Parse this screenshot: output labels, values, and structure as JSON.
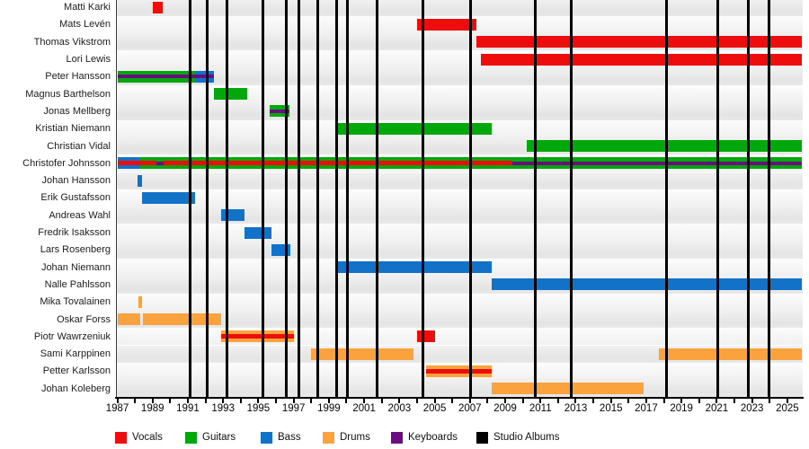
{
  "chart_data": {
    "type": "bar",
    "subtype": "band-members-timeline-gantt",
    "title": "",
    "x_axis": {
      "min": 1987,
      "max": 2025.84,
      "minor_tick_step": 1,
      "label_step": 2,
      "label_years": [
        1987,
        1989,
        1991,
        1993,
        1995,
        1997,
        1999,
        2001,
        2003,
        2005,
        2007,
        2009,
        2011,
        2013,
        2015,
        2017,
        2019,
        2021,
        2023,
        2025
      ]
    },
    "grid": "row-stripes-alternating",
    "legend_position": "bottom",
    "legend": [
      {
        "label": "Vocals",
        "role": "vocals"
      },
      {
        "label": "Guitars",
        "role": "guitars"
      },
      {
        "label": "Bass",
        "role": "bass"
      },
      {
        "label": "Drums",
        "role": "drums"
      },
      {
        "label": "Keyboards",
        "role": "keyboards"
      },
      {
        "label": "Studio Albums",
        "role": "albums"
      }
    ],
    "colors": {
      "vocals": "#ee0d0d",
      "guitars": "#00a80b",
      "bass": "#1272c8",
      "drums": "#faa33e",
      "keyboards": "#690d80",
      "albums": "#000000"
    },
    "album_lines_years": [
      1991.12,
      1992.1,
      1993.2,
      1995.27,
      1996.6,
      1997.3,
      1998.35,
      1999.45,
      2000.05,
      2001.75,
      2004.35,
      2007.05,
      2010.7,
      2012.75,
      2018.15,
      2021.05,
      2022.8,
      2023.95
    ],
    "members": [
      {
        "name": "Matti Karki",
        "bars": [
          {
            "role": "vocals",
            "layer": "full",
            "start": 1989.0,
            "end": 1989.6
          }
        ]
      },
      {
        "name": "Mats Levén",
        "bars": [
          {
            "role": "vocals",
            "layer": "full",
            "start": 2004.0,
            "end": 2007.35
          }
        ]
      },
      {
        "name": "Thomas Vikstrom",
        "bars": [
          {
            "role": "vocals",
            "layer": "full",
            "start": 2007.35,
            "end": 2025.84
          }
        ]
      },
      {
        "name": "Lori Lewis",
        "bars": [
          {
            "role": "vocals",
            "layer": "full",
            "start": 2007.62,
            "end": 2025.84
          }
        ]
      },
      {
        "name": "Peter Hansson",
        "bars": [
          {
            "role": "guitars",
            "layer": "full",
            "start": 1987.0,
            "end": 1991.4
          },
          {
            "role": "bass",
            "layer": "full",
            "start": 1991.4,
            "end": 1992.5
          },
          {
            "role": "keyboards",
            "layer": "stripe",
            "start": 1987.0,
            "end": 1992.5
          }
        ]
      },
      {
        "name": "Magnus Barthelson",
        "bars": [
          {
            "role": "guitars",
            "layer": "full",
            "start": 1992.5,
            "end": 1994.35
          }
        ]
      },
      {
        "name": "Jonas Mellberg",
        "bars": [
          {
            "role": "guitars",
            "layer": "full",
            "start": 1995.65,
            "end": 1996.75
          },
          {
            "role": "keyboards",
            "layer": "stripe",
            "start": 1995.65,
            "end": 1996.75
          }
        ]
      },
      {
        "name": "Kristian Niemann",
        "bars": [
          {
            "role": "guitars",
            "layer": "full",
            "start": 1999.5,
            "end": 2008.25
          }
        ]
      },
      {
        "name": "Christian Vidal",
        "bars": [
          {
            "role": "guitars",
            "layer": "full",
            "start": 2010.2,
            "end": 2025.84
          }
        ]
      },
      {
        "name": "Christofer Johnsson",
        "bars": [
          {
            "role": "bass",
            "layer": "full",
            "start": 1987.0,
            "end": 1988.3
          },
          {
            "role": "guitars",
            "layer": "full",
            "start": 1988.3,
            "end": 2025.84
          },
          {
            "role": "keyboards",
            "layer": "stripe",
            "start": 1989.2,
            "end": 2025.84
          },
          {
            "role": "vocals",
            "layer": "stripe",
            "start": 1987.0,
            "end": 1989.2
          },
          {
            "role": "vocals",
            "layer": "stripe",
            "start": 1989.62,
            "end": 2009.4
          }
        ]
      },
      {
        "name": "Johan Hansson",
        "bars": [
          {
            "role": "bass",
            "layer": "full",
            "start": 1988.15,
            "end": 1988.42
          }
        ]
      },
      {
        "name": "Erik Gustafsson",
        "bars": [
          {
            "role": "bass",
            "layer": "full",
            "start": 1988.42,
            "end": 1991.4
          }
        ]
      },
      {
        "name": "Andreas Wahl",
        "bars": [
          {
            "role": "bass",
            "layer": "full",
            "start": 1992.9,
            "end": 1994.2
          }
        ]
      },
      {
        "name": "Fredrik Isaksson",
        "bars": [
          {
            "role": "bass",
            "layer": "full",
            "start": 1994.2,
            "end": 1995.75
          }
        ]
      },
      {
        "name": "Lars Rosenberg",
        "bars": [
          {
            "role": "bass",
            "layer": "full",
            "start": 1995.75,
            "end": 1996.8
          }
        ]
      },
      {
        "name": "Johan Niemann",
        "bars": [
          {
            "role": "bass",
            "layer": "full",
            "start": 1999.5,
            "end": 2008.25
          }
        ]
      },
      {
        "name": "Nalle Pahlsson",
        "bars": [
          {
            "role": "bass",
            "layer": "full",
            "start": 2008.25,
            "end": 2025.84
          }
        ]
      },
      {
        "name": "Mika Tovalainen",
        "bars": [
          {
            "role": "drums",
            "layer": "full",
            "start": 1988.2,
            "end": 1988.42
          }
        ]
      },
      {
        "name": "Oskar Forss",
        "bars": [
          {
            "role": "drums",
            "layer": "full",
            "start": 1987.0,
            "end": 1988.28
          },
          {
            "role": "drums",
            "layer": "full",
            "start": 1988.45,
            "end": 1992.9
          }
        ]
      },
      {
        "name": "Piotr Wawrzeniuk",
        "bars": [
          {
            "role": "drums",
            "layer": "full",
            "start": 1992.88,
            "end": 1997.0
          },
          {
            "role": "vocals",
            "layer": "stripe",
            "start": 1992.88,
            "end": 1997.0
          },
          {
            "role": "vocals",
            "layer": "full",
            "start": 2004.0,
            "end": 2005.0
          }
        ]
      },
      {
        "name": "Sami Karppinen",
        "bars": [
          {
            "role": "drums",
            "layer": "full",
            "start": 1998.0,
            "end": 2003.82
          },
          {
            "role": "drums",
            "layer": "full",
            "start": 2017.72,
            "end": 2025.84
          }
        ]
      },
      {
        "name": "Petter Karlsson",
        "bars": [
          {
            "role": "drums",
            "layer": "full",
            "start": 2004.5,
            "end": 2008.25
          },
          {
            "role": "vocals",
            "layer": "stripe",
            "start": 2004.5,
            "end": 2008.25
          }
        ]
      },
      {
        "name": "Johan Koleberg",
        "bars": [
          {
            "role": "drums",
            "layer": "full",
            "start": 2008.25,
            "end": 2016.85
          }
        ]
      }
    ]
  }
}
